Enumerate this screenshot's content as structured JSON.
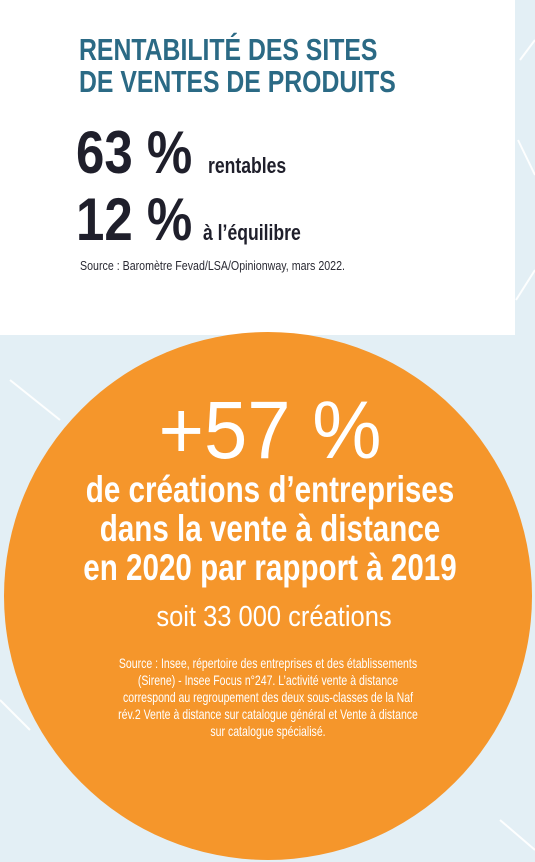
{
  "header": {
    "title_lines": [
      "RENTABILITÉ DES SITES",
      "DE VENTES DE PRODUITS"
    ]
  },
  "stats": [
    {
      "value": "63 %",
      "label": "rentables"
    },
    {
      "value": "12 %",
      "label": "à l’équilibre"
    }
  ],
  "stats_source": "Source : Baromètre Fevad/LSA/Opinionway, mars 2022.",
  "highlight": {
    "headline": "+57 %",
    "lines": [
      "de créations d’entreprises",
      "dans la vente à distance",
      "en 2020 par rapport à 2019"
    ],
    "subline": "soit 33 000 créations",
    "source_lines": [
      "Source : Insee, répertoire des entreprises et des établissements",
      "(Sirene) - Insee Focus n°247. L’activité vente à distance",
      "correspond au regroupement des deux sous-classes de la Naf",
      "rév.2 Vente à distance sur catalogue général et Vente à distance",
      "sur catalogue spécialisé."
    ]
  }
}
